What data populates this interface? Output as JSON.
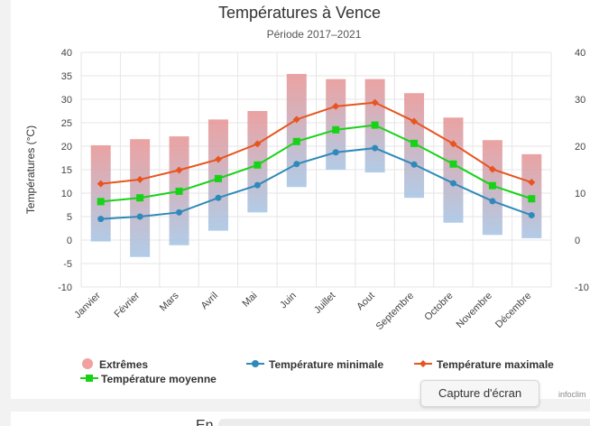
{
  "chart_data": {
    "type": "line",
    "title": "Températures à Vence",
    "subtitle": "Période 2017–2021",
    "ylabel": "Températures (°C)",
    "ylim": [
      -10,
      40
    ],
    "yticks": [
      -10,
      -5,
      0,
      5,
      10,
      15,
      20,
      25,
      30,
      35,
      40
    ],
    "yticks_right": [
      -10,
      0,
      10,
      20,
      30,
      40
    ],
    "grid": true,
    "categories": [
      "Janvier",
      "Février",
      "Mars",
      "Avril",
      "Mai",
      "Juin",
      "Juillet",
      "Aout",
      "Septembre",
      "Octobre",
      "Novembre",
      "Décembre"
    ],
    "series": [
      {
        "name": "Extrêmes",
        "kind": "range",
        "color": "#e89898",
        "color_low": "#a9c6e4",
        "low": [
          -0.3,
          -3.6,
          -1.1,
          2.0,
          5.9,
          11.3,
          15.0,
          14.4,
          9.0,
          3.7,
          1.1,
          0.4
        ],
        "high": [
          20.2,
          21.5,
          22.1,
          25.7,
          27.5,
          35.4,
          34.3,
          34.3,
          31.3,
          26.1,
          21.3,
          18.3
        ]
      },
      {
        "name": "Température minimale",
        "kind": "line",
        "color": "#2f8ab9",
        "marker": "circle",
        "values": [
          4.5,
          5.0,
          5.9,
          9.0,
          11.7,
          16.2,
          18.7,
          19.6,
          16.1,
          12.1,
          8.3,
          5.3
        ]
      },
      {
        "name": "Température maximale",
        "kind": "line",
        "color": "#e8541e",
        "marker": "diamond",
        "values": [
          12.0,
          12.9,
          14.9,
          17.2,
          20.5,
          25.7,
          28.5,
          29.3,
          25.3,
          20.5,
          15.1,
          12.3
        ]
      },
      {
        "name": "Température moyenne",
        "kind": "line",
        "color": "#18d218",
        "marker": "square",
        "values": [
          8.2,
          9.0,
          10.4,
          13.1,
          16.0,
          21.0,
          23.5,
          24.5,
          20.6,
          16.2,
          11.6,
          8.8
        ]
      }
    ]
  },
  "legend": {
    "extremes": "Extrêmes",
    "min": "Température minimale",
    "max": "Température maximale",
    "mean": "Température moyenne"
  },
  "tooltip": "Capture d'écran",
  "credit": "infoclim",
  "bottom_heading": "En"
}
